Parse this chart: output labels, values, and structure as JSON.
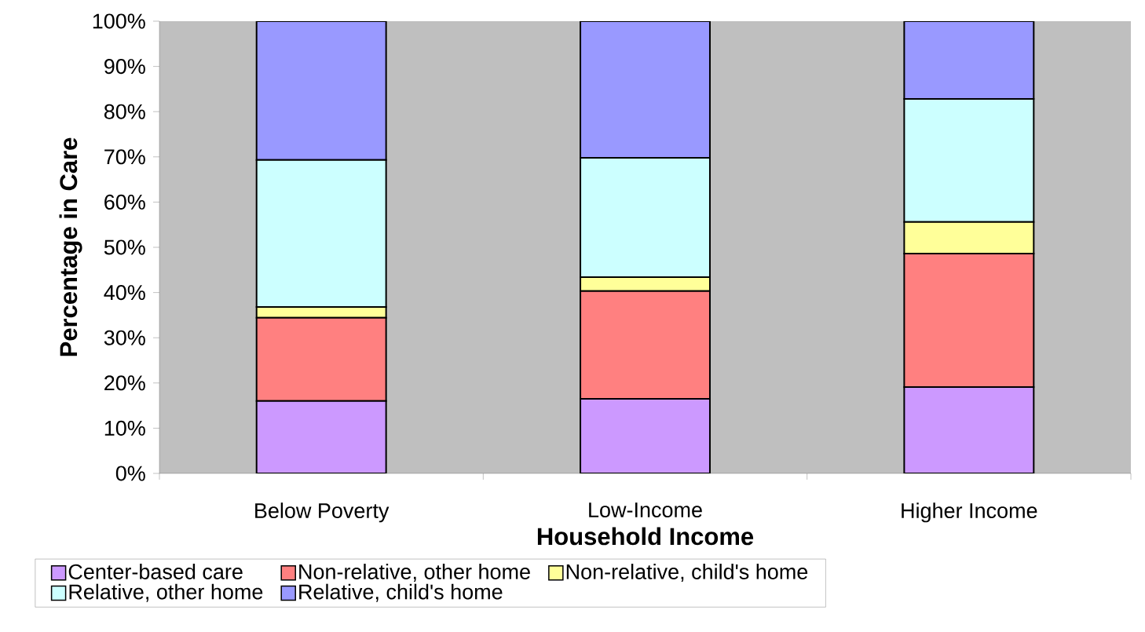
{
  "chart_data": {
    "type": "bar",
    "stacked": true,
    "xlabel": "Household Income",
    "ylabel": "Percentage in Care",
    "categories": [
      "Below Poverty",
      "Low-Income",
      "Higher Income"
    ],
    "series": [
      {
        "name": "Center-based care",
        "color": "#cc99ff",
        "values": [
          16.0,
          16.5,
          19.1
        ]
      },
      {
        "name": "Non-relative, other home",
        "color": "#ff8080",
        "values": [
          18.4,
          23.8,
          29.5
        ]
      },
      {
        "name": "Non-relative, child's home",
        "color": "#ffff99",
        "values": [
          2.4,
          3.1,
          7.0
        ]
      },
      {
        "name": "Relative, other home",
        "color": "#ccffff",
        "values": [
          32.5,
          26.4,
          27.2
        ]
      },
      {
        "name": "Relative, child's home",
        "color": "#9999ff",
        "values": [
          30.7,
          30.2,
          17.2
        ]
      }
    ],
    "ylim": [
      0,
      100
    ],
    "yticks": [
      {
        "value": 0,
        "label": "0%"
      },
      {
        "value": 10,
        "label": "10%"
      },
      {
        "value": 20,
        "label": "20%"
      },
      {
        "value": 30,
        "label": "30%"
      },
      {
        "value": 40,
        "label": "40%"
      },
      {
        "value": 50,
        "label": "50%"
      },
      {
        "value": 60,
        "label": "60%"
      },
      {
        "value": 70,
        "label": "70%"
      },
      {
        "value": 80,
        "label": "80%"
      },
      {
        "value": 90,
        "label": "90%"
      },
      {
        "value": 100,
        "label": "100%"
      }
    ],
    "legend": "bottom"
  }
}
